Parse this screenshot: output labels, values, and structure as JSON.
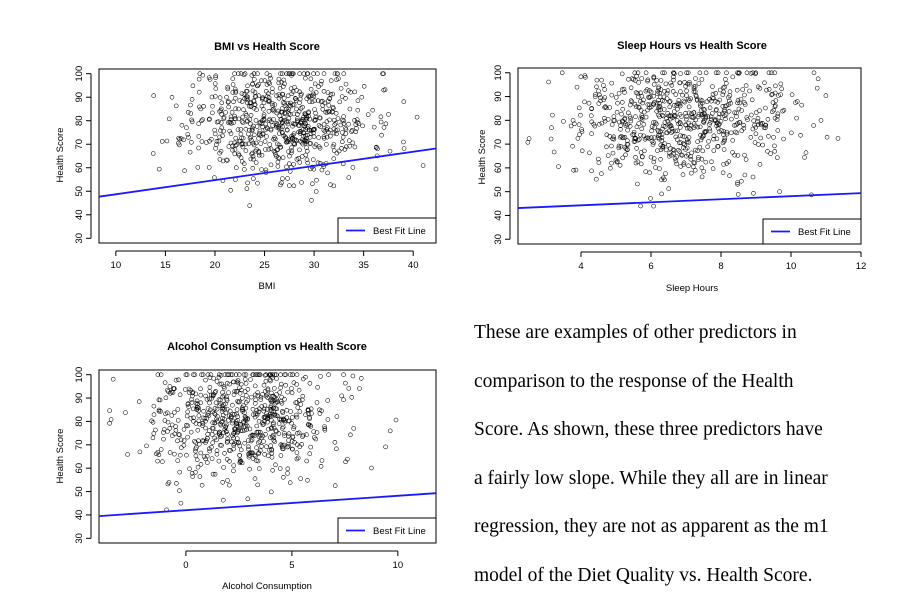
{
  "chart_data": [
    {
      "type": "scatter",
      "title": "BMI vs Health Score",
      "xlabel": "BMI",
      "ylabel": "Health Score",
      "xlim": [
        8.3,
        42.3
      ],
      "ylim": [
        28,
        102
      ],
      "xticks": [
        10,
        15,
        20,
        25,
        30,
        35,
        40
      ],
      "yticks": [
        30,
        40,
        50,
        60,
        70,
        80,
        90,
        100
      ],
      "cloud": {
        "center": [
          26.5,
          80
        ],
        "spread": [
          4.5,
          12
        ],
        "range": [
          10.5,
          41
        ]
      },
      "cap_value": 100,
      "fit_line": {
        "name": "Best Fit Line",
        "color": "#1a1aff",
        "x": [
          8.3,
          42.3
        ],
        "y": [
          47.7,
          68.2
        ]
      },
      "legend": "bottom-right",
      "grid": false
    },
    {
      "type": "scatter",
      "title": "Sleep Hours vs Health Score",
      "xlabel": "Sleep Hours",
      "ylabel": "Health Score",
      "xlim": [
        2.2,
        12
      ],
      "ylim": [
        28,
        102
      ],
      "xticks": [
        4,
        6,
        8,
        10,
        12
      ],
      "yticks": [
        30,
        40,
        50,
        60,
        70,
        80,
        90,
        100
      ],
      "cloud": {
        "center": [
          6.8,
          80
        ],
        "spread": [
          1.6,
          12
        ],
        "range": [
          2.3,
          11.8
        ]
      },
      "cap_value": 100,
      "fit_line": {
        "name": "Best Fit Line",
        "color": "#1a1aff",
        "x": [
          2.2,
          12
        ],
        "y": [
          43.1,
          49.4
        ]
      },
      "legend": "bottom-right",
      "grid": false
    },
    {
      "type": "scatter",
      "title": "Alcohol Consumption vs Health Score",
      "xlabel": "Alcohol Consumption",
      "ylabel": "Health Score",
      "xlim": [
        -4.1,
        11.8
      ],
      "ylim": [
        28,
        102
      ],
      "xticks": [
        0,
        5,
        10
      ],
      "yticks": [
        30,
        40,
        50,
        60,
        70,
        80,
        90,
        100
      ],
      "cloud": {
        "center": [
          2.6,
          80
        ],
        "spread": [
          2.2,
          12
        ],
        "range": [
          -3.6,
          11.2
        ]
      },
      "cap_value": 100,
      "fit_line": {
        "name": "Best Fit Line",
        "color": "#1a1aff",
        "x": [
          -4.1,
          11.8
        ],
        "y": [
          39.5,
          49.3
        ]
      },
      "legend": "bottom-right",
      "grid": false
    }
  ],
  "caption_lines": [
    "These are examples of other predictors in",
    "comparison to the response of the Health",
    "Score. As shown, these three predictors have",
    "a fairly low slope. While they all are in linear",
    "regression, they are not as apparent as the m1",
    "model of the Diet Quality vs. Health Score."
  ]
}
